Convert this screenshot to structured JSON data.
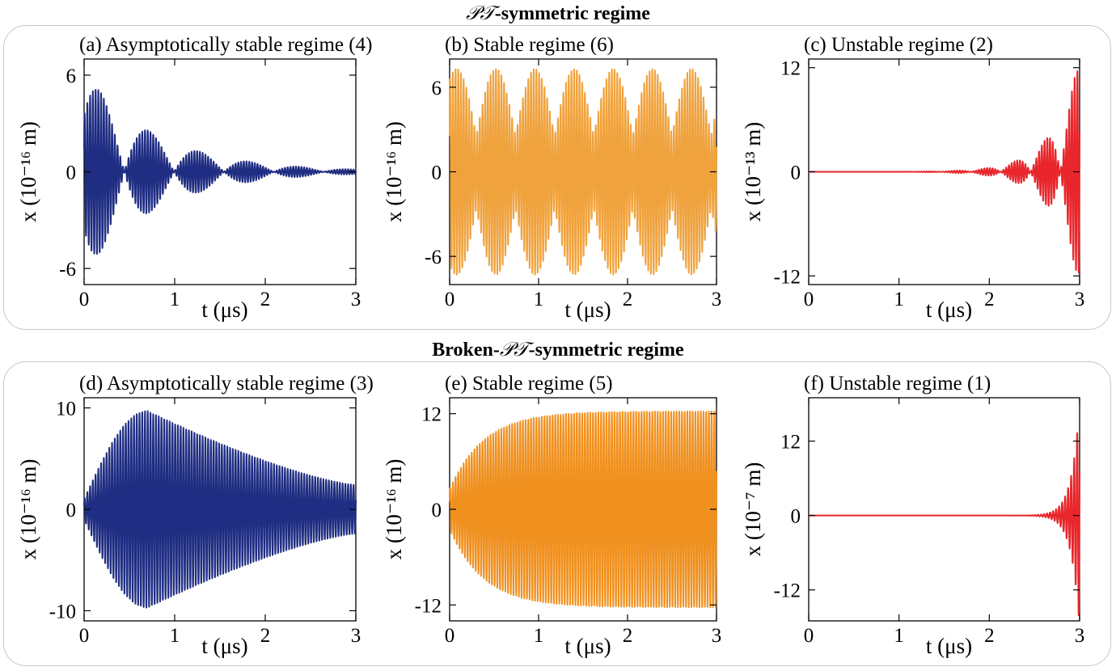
{
  "groups": [
    {
      "title_prefix": "𝒫𝒯",
      "title_rest": "-symmetric regime"
    },
    {
      "title_prefix": "Broken-",
      "title_pt": "𝒫𝒯",
      "title_rest": "-symmetric regime"
    }
  ],
  "chart_data": [
    {
      "id": "a",
      "type": "line",
      "title": "(a) Asymptotically stable regime (4)",
      "xlabel": "t (μs)",
      "ylabel": "x (10⁻¹⁶ m)",
      "xlim": [
        0,
        3
      ],
      "ylim": [
        -7,
        7
      ],
      "xticks": [
        0,
        1,
        2,
        3
      ],
      "yticks": [
        -6,
        0,
        6
      ],
      "color": "#1f2d82",
      "series": [
        {
          "model": "beating-decay",
          "amplitude": 6.2,
          "carrier_cycles_per_us": 33,
          "beat_period_us": 0.55,
          "decay_per_us": 1.25
        }
      ]
    },
    {
      "id": "b",
      "type": "line",
      "title": "(b)  Stable regime (6)",
      "xlabel": "t (μs)",
      "ylabel": "x (10⁻¹⁶ m)",
      "xlim": [
        0,
        3
      ],
      "ylim": [
        -8,
        8
      ],
      "xticks": [
        0,
        1,
        2,
        3
      ],
      "yticks": [
        -6,
        0,
        6
      ],
      "color": "#f0a23c",
      "series": [
        {
          "model": "beating",
          "amplitude": 7.3,
          "carrier_cycles_per_us": 33,
          "beat_period_us": 0.44
        }
      ]
    },
    {
      "id": "c",
      "type": "line",
      "title": "(c)  Unstable regime (2)",
      "xlabel": "t (μs)",
      "ylabel": "x (10⁻¹³ m)",
      "xlim": [
        0,
        3
      ],
      "ylim": [
        -13,
        13
      ],
      "xticks": [
        0,
        1,
        2,
        3
      ],
      "yticks": [
        -12,
        0,
        12
      ],
      "color": "#e8262b",
      "series": [
        {
          "model": "beating-growth",
          "amplitude": 13,
          "carrier_cycles_per_us": 33,
          "beat_period_us": 0.33,
          "growth_per_us": 3.3
        }
      ]
    },
    {
      "id": "d",
      "type": "line",
      "title": "(d) Asymptotically stable regime (3)",
      "xlabel": "t (μs)",
      "ylabel": "x (10⁻¹⁶ m)",
      "xlim": [
        0,
        3
      ],
      "ylim": [
        -11,
        11
      ],
      "xticks": [
        0,
        1,
        2,
        3
      ],
      "yticks": [
        -10,
        0,
        10
      ],
      "color": "#1f2d82",
      "series": [
        {
          "model": "rise-decay",
          "peak": 9.7,
          "peak_time_us": 0.7,
          "end_amplitude": 2.4,
          "carrier_cycles_per_us": 33
        }
      ]
    },
    {
      "id": "e",
      "type": "line",
      "title": "(e)  Stable regime (5)",
      "xlabel": "t (μs)",
      "ylabel": "x (10⁻¹⁶ m)",
      "xlim": [
        0,
        3
      ],
      "ylim": [
        -14,
        14
      ],
      "xticks": [
        0,
        1,
        2,
        3
      ],
      "yticks": [
        -12,
        0,
        12
      ],
      "color": "#f0901e",
      "series": [
        {
          "model": "saturating",
          "amplitude": 12.3,
          "start_amplitude": 2.5,
          "rise_per_us": 2.6,
          "carrier_cycles_per_us": 33
        }
      ]
    },
    {
      "id": "f",
      "type": "line",
      "title": "(f)  Unstable regime (1)",
      "xlabel": "t (μs)",
      "ylabel": "x (10⁻⁷ m)",
      "xlim": [
        0,
        3
      ],
      "ylim": [
        -17,
        19
      ],
      "xticks": [
        0,
        1,
        2,
        3
      ],
      "yticks": [
        -12,
        0,
        12
      ],
      "color": "#e8262b",
      "series": [
        {
          "model": "exp-growth",
          "amplitude": 18,
          "growth_per_us": 11,
          "carrier_cycles_per_us": 30
        }
      ]
    }
  ]
}
